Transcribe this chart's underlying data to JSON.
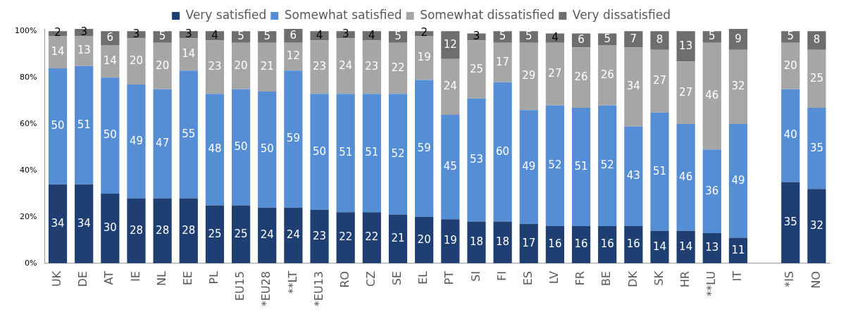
{
  "chart_data": {
    "type": "bar",
    "stacked": true,
    "data_labels": true,
    "legend": "top",
    "categories": [
      "UK",
      "DE",
      "AT",
      "IE",
      "NL",
      "EE",
      "PL",
      "EU15",
      "*EU28",
      "**LT",
      "*EU13",
      "RO",
      "CZ",
      "SE",
      "EL",
      "PT",
      "SI",
      "FI",
      "ES",
      "LV",
      "FR",
      "BE",
      "DK",
      "SK",
      "HR",
      "**LU",
      "IT",
      null,
      "*IS",
      "NO"
    ],
    "series": [
      {
        "name": "Very satisfied",
        "color": "#1f3f73",
        "values": [
          34,
          34,
          30,
          28,
          28,
          28,
          25,
          25,
          24,
          24,
          23,
          22,
          22,
          21,
          20,
          19,
          18,
          18,
          17,
          16,
          16,
          16,
          16,
          14,
          14,
          13,
          11,
          null,
          35,
          32
        ]
      },
      {
        "name": "Somewhat satisfied",
        "color": "#558ed5",
        "values": [
          50,
          51,
          50,
          49,
          47,
          55,
          48,
          50,
          50,
          59,
          50,
          51,
          51,
          52,
          59,
          45,
          53,
          60,
          49,
          52,
          51,
          52,
          43,
          51,
          46,
          36,
          49,
          null,
          40,
          35
        ]
      },
      {
        "name": "Somewhat dissatisfied",
        "color": "#a6a6a6",
        "values": [
          14,
          13,
          14,
          20,
          20,
          14,
          23,
          20,
          21,
          12,
          23,
          24,
          23,
          22,
          19,
          24,
          25,
          17,
          29,
          27,
          26,
          26,
          34,
          27,
          27,
          46,
          32,
          null,
          20,
          25
        ]
      },
      {
        "name": "Very dissatisfied",
        "color": "#6e6e6e",
        "values": [
          2,
          3,
          6,
          3,
          5,
          3,
          4,
          5,
          5,
          6,
          4,
          3,
          4,
          5,
          2,
          12,
          3,
          5,
          5,
          4,
          6,
          5,
          7,
          8,
          13,
          5,
          9,
          null,
          5,
          8
        ]
      }
    ],
    "ylim": [
      0,
      101
    ],
    "yticks": [
      {
        "value": 0,
        "label": "0%"
      },
      {
        "value": 20,
        "label": "20%"
      },
      {
        "value": 40,
        "label": "40%"
      },
      {
        "value": 60,
        "label": "60%"
      },
      {
        "value": 80,
        "label": "80%"
      },
      {
        "value": 100,
        "label": "100%"
      }
    ]
  }
}
